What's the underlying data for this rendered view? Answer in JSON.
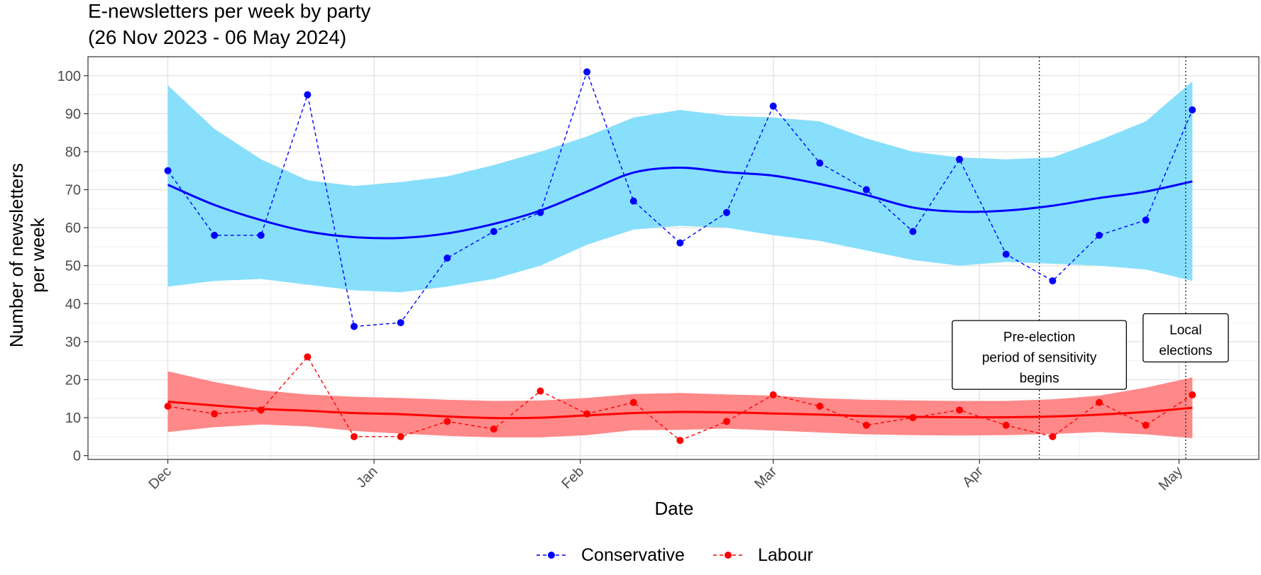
{
  "chart_data": {
    "type": "line",
    "title_line1": "E-newsletters per week by party",
    "title_line2": "(26 Nov 2023 - 06 May 2024)",
    "xlabel": "Date",
    "ylabel_line1": "Number of newsletters",
    "ylabel_line2": "per week",
    "x_tick_labels": [
      {
        "label": "Dec",
        "date": "2023-12-01"
      },
      {
        "label": "Jan",
        "date": "2024-01-01"
      },
      {
        "label": "Feb",
        "date": "2024-02-01"
      },
      {
        "label": "Mar",
        "date": "2024-03-01"
      },
      {
        "label": "Apr",
        "date": "2024-04-01"
      },
      {
        "label": "May",
        "date": "2024-05-01"
      }
    ],
    "xlim": [
      "2023-11-19",
      "2024-05-13"
    ],
    "ylim": [
      -1,
      105
    ],
    "y_ticks": [
      0,
      10,
      20,
      30,
      40,
      50,
      60,
      70,
      80,
      90,
      100
    ],
    "grid": true,
    "legend_position": "bottom",
    "x": [
      "2023-12-01",
      "2023-12-08",
      "2023-12-15",
      "2023-12-22",
      "2023-12-29",
      "2024-01-05",
      "2024-01-12",
      "2024-01-19",
      "2024-01-26",
      "2024-02-02",
      "2024-02-09",
      "2024-02-16",
      "2024-02-23",
      "2024-03-01",
      "2024-03-08",
      "2024-03-15",
      "2024-03-22",
      "2024-03-29",
      "2024-04-05",
      "2024-04-12",
      "2024-04-19",
      "2024-04-26",
      "2024-05-03"
    ],
    "series": [
      {
        "name": "Conservative",
        "color": "#0000ff",
        "band_color": "#87dffc",
        "values": [
          75,
          58,
          58,
          95,
          34,
          35,
          52,
          59,
          64,
          101,
          67,
          56,
          64,
          92,
          77,
          70,
          59,
          78,
          53,
          46,
          58,
          62,
          91
        ],
        "trend": [
          71.3,
          66,
          62,
          59,
          57.5,
          57.3,
          58.5,
          61,
          64.5,
          69.5,
          74.5,
          75.8,
          74.6,
          73.7,
          71.5,
          68.6,
          65.3,
          64.2,
          64.5,
          65.8,
          67.8,
          69.5,
          72.2
        ],
        "band_lower": [
          44.5,
          46,
          46.5,
          45,
          43.5,
          43,
          44.5,
          46.5,
          50,
          55.5,
          59.5,
          60.5,
          60,
          58,
          56.5,
          54,
          51.5,
          50,
          51,
          50.5,
          50,
          49,
          46
        ],
        "band_upper": [
          97.5,
          86,
          78,
          72.5,
          71,
          72,
          73.5,
          76.5,
          80,
          84,
          89,
          91,
          89.5,
          89,
          88,
          83.5,
          80,
          78.5,
          78,
          78.5,
          83,
          88,
          98.5
        ]
      },
      {
        "name": "Labour",
        "color": "#ff0000",
        "band_color": "#ff8888",
        "values": [
          13,
          11,
          12,
          26,
          5,
          5,
          9,
          7,
          17,
          11,
          14,
          4,
          9,
          16,
          13,
          8,
          10,
          12,
          8,
          5,
          14,
          8,
          16
        ],
        "trend": [
          14.2,
          13.2,
          12.3,
          11.8,
          11.2,
          10.9,
          10.3,
          9.9,
          10,
          10.6,
          11.2,
          11.5,
          11.4,
          11.1,
          10.8,
          10.4,
          10.2,
          10.1,
          10.1,
          10.3,
          10.8,
          11.5,
          12.6
        ],
        "band_lower": [
          6.2,
          7.5,
          8.2,
          7.7,
          6.5,
          5.8,
          5.2,
          4.8,
          4.8,
          5.4,
          6.7,
          6.8,
          7.1,
          6.6,
          6.1,
          5.6,
          5.4,
          5.3,
          5.4,
          5.7,
          6.2,
          5.6,
          4.6
        ],
        "band_upper": [
          22.2,
          19.4,
          17.2,
          16.1,
          15.5,
          15.2,
          14.7,
          14.4,
          14.5,
          15.2,
          16.2,
          16.5,
          16.1,
          15.8,
          15.1,
          14.7,
          14.5,
          14.4,
          14.4,
          14.8,
          15.8,
          17.9,
          20.6
        ]
      }
    ],
    "annotations": [
      {
        "date": "2024-04-10",
        "lines": [
          "Pre-election",
          "period of sensitivity",
          "begins"
        ],
        "label_y": 26.5
      },
      {
        "date": "2024-05-02",
        "lines": [
          "Local",
          "elections"
        ],
        "label_y": 31
      }
    ]
  }
}
